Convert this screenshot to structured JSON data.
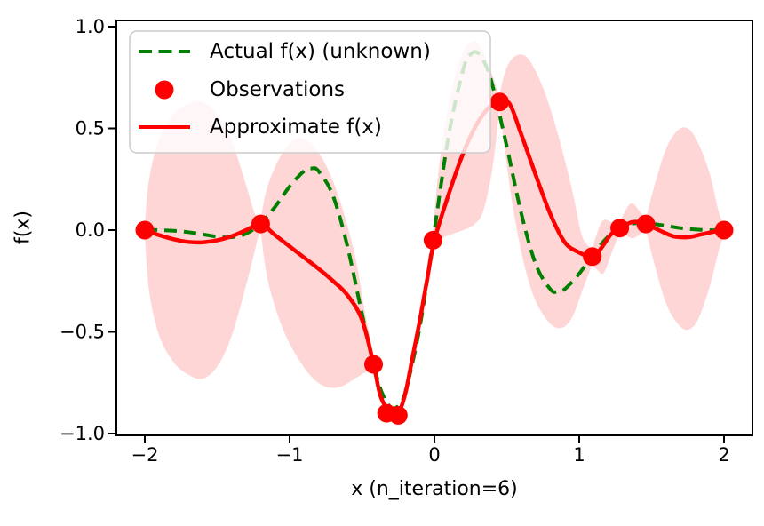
{
  "figure": {
    "xlabel": "x (n_iteration=6)",
    "ylabel": "f(x)",
    "background": "#ffffff"
  },
  "axes": {
    "xlim": [
      -2.2,
      2.2
    ],
    "ylim": [
      -1.01,
      1.03
    ],
    "x_ticks": [
      {
        "value": -2,
        "label": "−2"
      },
      {
        "value": -1,
        "label": "−1"
      },
      {
        "value": 0,
        "label": "0"
      },
      {
        "value": 1,
        "label": "1"
      },
      {
        "value": 2,
        "label": "2"
      }
    ],
    "y_ticks": [
      {
        "value": 1.0,
        "label": "1.0"
      },
      {
        "value": 0.5,
        "label": "0.5"
      },
      {
        "value": 0.0,
        "label": "0.0"
      },
      {
        "value": -0.5,
        "label": "−0.5"
      },
      {
        "value": -1.0,
        "label": "−1.0"
      }
    ]
  },
  "legend": {
    "items": [
      {
        "label": "Actual f(x) (unknown)",
        "marker": "dashed-line",
        "color": "#008000"
      },
      {
        "label": "Observations",
        "marker": "dot",
        "color": "#ff0000"
      },
      {
        "label": "Approximate f(x)",
        "marker": "solid-line",
        "color": "#ff0000"
      }
    ]
  },
  "colors": {
    "actual": "#008000",
    "approximate": "#ff0000",
    "observations": "#ff0000",
    "uncertainty_fill": "rgba(255,0,0,0.16)",
    "spine": "#000000",
    "legend_border": "#cccccc",
    "legend_bg": "rgba(255,255,255,0.8)"
  },
  "chart_data": {
    "type": "line",
    "title": "",
    "xlabel": "x (n_iteration=6)",
    "ylabel": "f(x)",
    "xlim": [
      -2.2,
      2.2
    ],
    "ylim": [
      -1.01,
      1.03
    ],
    "grid": false,
    "legend_position": "upper-left",
    "series": [
      {
        "name": "Actual f(x) (unknown)",
        "style": "dashed",
        "color": "#008000",
        "points": [
          [
            -2.0,
            0.001
          ],
          [
            -1.9,
            0.0
          ],
          [
            -1.8,
            -0.003
          ],
          [
            -1.7,
            -0.01
          ],
          [
            -1.6,
            -0.021
          ],
          [
            -1.5,
            -0.032
          ],
          [
            -1.4,
            -0.035
          ],
          [
            -1.3,
            -0.017
          ],
          [
            -1.2,
            0.032
          ],
          [
            -1.1,
            0.115
          ],
          [
            -1.0,
            0.214
          ],
          [
            -0.9,
            0.29
          ],
          [
            -0.85,
            0.303
          ],
          [
            -0.8,
            0.29
          ],
          [
            -0.7,
            0.168
          ],
          [
            -0.6,
            -0.082
          ],
          [
            -0.5,
            -0.411
          ],
          [
            -0.4,
            -0.715
          ],
          [
            -0.35,
            -0.818
          ],
          [
            -0.3,
            -0.871
          ],
          [
            -0.25,
            -0.864
          ],
          [
            -0.2,
            -0.793
          ],
          [
            -0.1,
            -0.472
          ],
          [
            0.0,
            0.0
          ],
          [
            0.1,
            0.472
          ],
          [
            0.2,
            0.793
          ],
          [
            0.25,
            0.864
          ],
          [
            0.3,
            0.871
          ],
          [
            0.35,
            0.818
          ],
          [
            0.4,
            0.715
          ],
          [
            0.5,
            0.411
          ],
          [
            0.6,
            0.082
          ],
          [
            0.7,
            -0.168
          ],
          [
            0.8,
            -0.29
          ],
          [
            0.85,
            -0.303
          ],
          [
            0.9,
            -0.29
          ],
          [
            1.0,
            -0.214
          ],
          [
            1.1,
            -0.115
          ],
          [
            1.2,
            -0.032
          ],
          [
            1.3,
            0.017
          ],
          [
            1.4,
            0.035
          ],
          [
            1.5,
            0.032
          ],
          [
            1.6,
            0.021
          ],
          [
            1.7,
            0.01
          ],
          [
            1.8,
            0.003
          ],
          [
            1.9,
            0.0
          ],
          [
            2.0,
            -0.001
          ]
        ]
      },
      {
        "name": "Approximate f(x)",
        "style": "solid",
        "color": "#ff0000",
        "points": [
          [
            -2.0,
            0.0
          ],
          [
            -1.9,
            -0.025
          ],
          [
            -1.8,
            -0.045
          ],
          [
            -1.7,
            -0.058
          ],
          [
            -1.6,
            -0.06
          ],
          [
            -1.5,
            -0.05
          ],
          [
            -1.4,
            -0.03
          ],
          [
            -1.3,
            0.0
          ],
          [
            -1.2,
            0.03
          ],
          [
            -1.1,
            -0.025
          ],
          [
            -1.0,
            -0.08
          ],
          [
            -0.9,
            -0.135
          ],
          [
            -0.8,
            -0.19
          ],
          [
            -0.7,
            -0.25
          ],
          [
            -0.6,
            -0.32
          ],
          [
            -0.5,
            -0.44
          ],
          [
            -0.42,
            -0.66
          ],
          [
            -0.37,
            -0.82
          ],
          [
            -0.3,
            -0.9
          ],
          [
            -0.25,
            -0.9
          ],
          [
            -0.2,
            -0.8
          ],
          [
            -0.15,
            -0.62
          ],
          [
            -0.1,
            -0.44
          ],
          [
            -0.05,
            -0.24
          ],
          [
            0.0,
            -0.05
          ],
          [
            0.1,
            0.18
          ],
          [
            0.2,
            0.38
          ],
          [
            0.3,
            0.53
          ],
          [
            0.4,
            0.62
          ],
          [
            0.45,
            0.63
          ],
          [
            0.52,
            0.62
          ],
          [
            0.6,
            0.47
          ],
          [
            0.7,
            0.27
          ],
          [
            0.8,
            0.08
          ],
          [
            0.9,
            -0.06
          ],
          [
            1.0,
            -0.11
          ],
          [
            1.09,
            -0.13
          ],
          [
            1.15,
            -0.09
          ],
          [
            1.22,
            -0.02
          ],
          [
            1.28,
            0.01
          ],
          [
            1.37,
            0.04
          ],
          [
            1.46,
            0.03
          ],
          [
            1.55,
            0.0
          ],
          [
            1.65,
            -0.03
          ],
          [
            1.75,
            -0.035
          ],
          [
            1.85,
            -0.02
          ],
          [
            1.95,
            -0.005
          ],
          [
            2.0,
            0.0
          ]
        ]
      },
      {
        "name": "Observations",
        "style": "scatter",
        "color": "#ff0000",
        "points": [
          [
            -2.0,
            0.0
          ],
          [
            -1.2,
            0.03
          ],
          [
            -0.42,
            -0.66
          ],
          [
            -0.33,
            -0.9
          ],
          [
            -0.25,
            -0.91
          ],
          [
            -0.01,
            -0.05
          ],
          [
            0.45,
            0.63
          ],
          [
            1.09,
            -0.13
          ],
          [
            1.28,
            0.01
          ],
          [
            1.46,
            0.03
          ],
          [
            2.0,
            0.0
          ]
        ]
      }
    ],
    "uncertainty_band": {
      "name": "confidence interval",
      "color": "rgba(255,0,0,0.16)",
      "lobes": [
        {
          "top": [
            [
              -2.0,
              0.02
            ],
            [
              -1.97,
              0.25
            ],
            [
              -1.9,
              0.45
            ],
            [
              -1.8,
              0.57
            ],
            [
              -1.7,
              0.62
            ],
            [
              -1.6,
              0.63
            ],
            [
              -1.5,
              0.57
            ],
            [
              -1.4,
              0.44
            ],
            [
              -1.3,
              0.22
            ],
            [
              -1.24,
              0.08
            ],
            [
              -1.2,
              0.04
            ]
          ],
          "bottom": [
            [
              -2.0,
              -0.02
            ],
            [
              -1.97,
              -0.3
            ],
            [
              -1.9,
              -0.52
            ],
            [
              -1.8,
              -0.65
            ],
            [
              -1.7,
              -0.71
            ],
            [
              -1.6,
              -0.73
            ],
            [
              -1.5,
              -0.67
            ],
            [
              -1.4,
              -0.52
            ],
            [
              -1.3,
              -0.27
            ],
            [
              -1.24,
              -0.1
            ],
            [
              -1.2,
              0.02
            ]
          ]
        },
        {
          "top": [
            [
              -1.2,
              0.05
            ],
            [
              -1.15,
              0.22
            ],
            [
              -1.05,
              0.38
            ],
            [
              -0.95,
              0.45
            ],
            [
              -0.85,
              0.42
            ],
            [
              -0.75,
              0.32
            ],
            [
              -0.65,
              0.14
            ],
            [
              -0.55,
              -0.12
            ],
            [
              -0.48,
              -0.4
            ],
            [
              -0.42,
              -0.62
            ]
          ],
          "bottom": [
            [
              -1.2,
              0.0
            ],
            [
              -1.15,
              -0.25
            ],
            [
              -1.05,
              -0.48
            ],
            [
              -0.95,
              -0.62
            ],
            [
              -0.85,
              -0.72
            ],
            [
              -0.75,
              -0.77
            ],
            [
              -0.65,
              -0.77
            ],
            [
              -0.55,
              -0.73
            ],
            [
              -0.48,
              -0.7
            ],
            [
              -0.42,
              -0.68
            ]
          ]
        },
        {
          "top": [
            [
              -0.01,
              0.0
            ],
            [
              0.03,
              0.3
            ],
            [
              0.08,
              0.55
            ],
            [
              0.14,
              0.75
            ],
            [
              0.2,
              0.88
            ],
            [
              0.27,
              0.93
            ],
            [
              0.33,
              0.89
            ],
            [
              0.39,
              0.78
            ],
            [
              0.45,
              0.65
            ]
          ],
          "bottom": [
            [
              -0.01,
              -0.08
            ],
            [
              0.05,
              -0.04
            ],
            [
              0.12,
              -0.02
            ],
            [
              0.2,
              0.0
            ],
            [
              0.28,
              0.03
            ],
            [
              0.34,
              0.1
            ],
            [
              0.4,
              0.3
            ],
            [
              0.45,
              0.6
            ]
          ]
        },
        {
          "top": [
            [
              0.45,
              0.66
            ],
            [
              0.5,
              0.8
            ],
            [
              0.57,
              0.86
            ],
            [
              0.65,
              0.84
            ],
            [
              0.75,
              0.7
            ],
            [
              0.85,
              0.48
            ],
            [
              0.95,
              0.2
            ],
            [
              1.02,
              -0.03
            ],
            [
              1.09,
              -0.1
            ]
          ],
          "bottom": [
            [
              0.45,
              0.6
            ],
            [
              0.5,
              0.32
            ],
            [
              0.55,
              0.08
            ],
            [
              0.62,
              -0.17
            ],
            [
              0.7,
              -0.35
            ],
            [
              0.8,
              -0.46
            ],
            [
              0.88,
              -0.48
            ],
            [
              0.95,
              -0.43
            ],
            [
              1.02,
              -0.3
            ],
            [
              1.09,
              -0.16
            ]
          ]
        },
        {
          "top": [
            [
              1.09,
              -0.1
            ],
            [
              1.13,
              0.0
            ],
            [
              1.17,
              0.05
            ],
            [
              1.22,
              0.04
            ],
            [
              1.28,
              0.03
            ]
          ],
          "bottom": [
            [
              1.09,
              -0.16
            ],
            [
              1.13,
              -0.2
            ],
            [
              1.17,
              -0.21
            ],
            [
              1.22,
              -0.12
            ],
            [
              1.28,
              -0.01
            ]
          ]
        },
        {
          "top": [
            [
              1.28,
              0.03
            ],
            [
              1.33,
              0.11
            ],
            [
              1.37,
              0.13
            ],
            [
              1.42,
              0.09
            ],
            [
              1.46,
              0.05
            ]
          ],
          "bottom": [
            [
              1.28,
              -0.01
            ],
            [
              1.33,
              -0.03
            ],
            [
              1.37,
              -0.04
            ],
            [
              1.42,
              -0.02
            ],
            [
              1.46,
              0.01
            ]
          ]
        },
        {
          "top": [
            [
              1.46,
              0.05
            ],
            [
              1.52,
              0.22
            ],
            [
              1.6,
              0.4
            ],
            [
              1.68,
              0.49
            ],
            [
              1.75,
              0.5
            ],
            [
              1.82,
              0.43
            ],
            [
              1.9,
              0.28
            ],
            [
              1.96,
              0.1
            ],
            [
              2.0,
              0.02
            ]
          ],
          "bottom": [
            [
              1.46,
              0.01
            ],
            [
              1.52,
              -0.17
            ],
            [
              1.6,
              -0.36
            ],
            [
              1.68,
              -0.46
            ],
            [
              1.75,
              -0.49
            ],
            [
              1.82,
              -0.44
            ],
            [
              1.9,
              -0.28
            ],
            [
              1.96,
              -0.11
            ],
            [
              2.0,
              -0.02
            ]
          ]
        }
      ]
    }
  }
}
